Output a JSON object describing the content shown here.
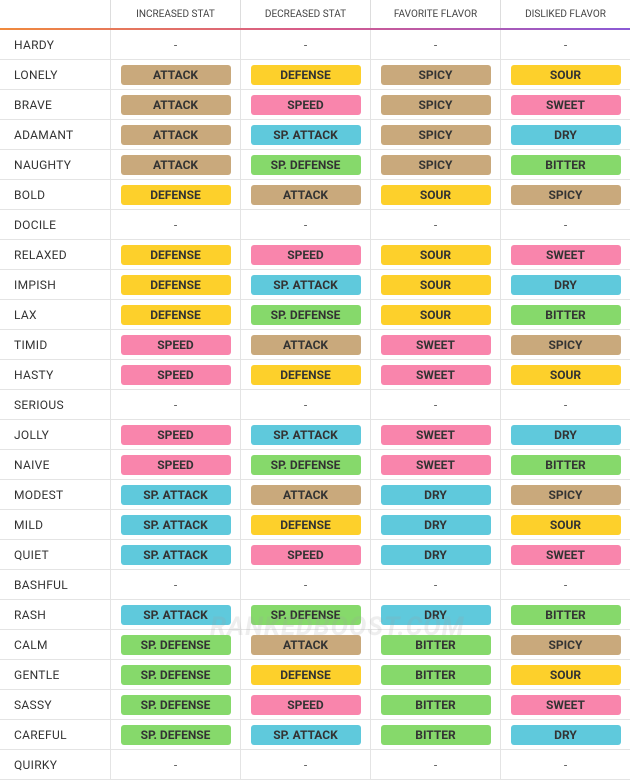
{
  "table": {
    "headers": [
      "INCREASED STAT",
      "DECREASED STAT",
      "FAVORITE FLAVOR",
      "DISLIKED FLAVOR"
    ],
    "rows": [
      {
        "name": "HARDY",
        "cells": [
          {
            "text": "-"
          },
          {
            "text": "-"
          },
          {
            "text": "-"
          },
          {
            "text": "-"
          }
        ]
      },
      {
        "name": "LONELY",
        "cells": [
          {
            "text": "ATTACK",
            "color": "#c9a97c"
          },
          {
            "text": "DEFENSE",
            "color": "#fdd02b"
          },
          {
            "text": "SPICY",
            "color": "#c9a97c"
          },
          {
            "text": "SOUR",
            "color": "#fdd02b"
          }
        ]
      },
      {
        "name": "BRAVE",
        "cells": [
          {
            "text": "ATTACK",
            "color": "#c9a97c"
          },
          {
            "text": "SPEED",
            "color": "#f985ac"
          },
          {
            "text": "SPICY",
            "color": "#c9a97c"
          },
          {
            "text": "SWEET",
            "color": "#f985ac"
          }
        ]
      },
      {
        "name": "ADAMANT",
        "cells": [
          {
            "text": "ATTACK",
            "color": "#c9a97c"
          },
          {
            "text": "SP. ATTACK",
            "color": "#5fc9dc"
          },
          {
            "text": "SPICY",
            "color": "#c9a97c"
          },
          {
            "text": "DRY",
            "color": "#5fc9dc"
          }
        ]
      },
      {
        "name": "NAUGHTY",
        "cells": [
          {
            "text": "ATTACK",
            "color": "#c9a97c"
          },
          {
            "text": "SP. DEFENSE",
            "color": "#86d96b"
          },
          {
            "text": "SPICY",
            "color": "#c9a97c"
          },
          {
            "text": "BITTER",
            "color": "#86d96b"
          }
        ]
      },
      {
        "name": "BOLD",
        "cells": [
          {
            "text": "DEFENSE",
            "color": "#fdd02b"
          },
          {
            "text": "ATTACK",
            "color": "#c9a97c"
          },
          {
            "text": "SOUR",
            "color": "#fdd02b"
          },
          {
            "text": "SPICY",
            "color": "#c9a97c"
          }
        ]
      },
      {
        "name": "DOCILE",
        "cells": [
          {
            "text": "-"
          },
          {
            "text": "-"
          },
          {
            "text": "-"
          },
          {
            "text": "-"
          }
        ]
      },
      {
        "name": "RELAXED",
        "cells": [
          {
            "text": "DEFENSE",
            "color": "#fdd02b"
          },
          {
            "text": "SPEED",
            "color": "#f985ac"
          },
          {
            "text": "SOUR",
            "color": "#fdd02b"
          },
          {
            "text": "SWEET",
            "color": "#f985ac"
          }
        ]
      },
      {
        "name": "IMPISH",
        "cells": [
          {
            "text": "DEFENSE",
            "color": "#fdd02b"
          },
          {
            "text": "SP. ATTACK",
            "color": "#5fc9dc"
          },
          {
            "text": "SOUR",
            "color": "#fdd02b"
          },
          {
            "text": "DRY",
            "color": "#5fc9dc"
          }
        ]
      },
      {
        "name": "LAX",
        "cells": [
          {
            "text": "DEFENSE",
            "color": "#fdd02b"
          },
          {
            "text": "SP. DEFENSE",
            "color": "#86d96b"
          },
          {
            "text": "SOUR",
            "color": "#fdd02b"
          },
          {
            "text": "BITTER",
            "color": "#86d96b"
          }
        ]
      },
      {
        "name": "TIMID",
        "cells": [
          {
            "text": "SPEED",
            "color": "#f985ac"
          },
          {
            "text": "ATTACK",
            "color": "#c9a97c"
          },
          {
            "text": "SWEET",
            "color": "#f985ac"
          },
          {
            "text": "SPICY",
            "color": "#c9a97c"
          }
        ]
      },
      {
        "name": "HASTY",
        "cells": [
          {
            "text": "SPEED",
            "color": "#f985ac"
          },
          {
            "text": "DEFENSE",
            "color": "#fdd02b"
          },
          {
            "text": "SWEET",
            "color": "#f985ac"
          },
          {
            "text": "SOUR",
            "color": "#fdd02b"
          }
        ]
      },
      {
        "name": "SERIOUS",
        "cells": [
          {
            "text": "-"
          },
          {
            "text": "-"
          },
          {
            "text": "-"
          },
          {
            "text": "-"
          }
        ]
      },
      {
        "name": "JOLLY",
        "cells": [
          {
            "text": "SPEED",
            "color": "#f985ac"
          },
          {
            "text": "SP. ATTACK",
            "color": "#5fc9dc"
          },
          {
            "text": "SWEET",
            "color": "#f985ac"
          },
          {
            "text": "DRY",
            "color": "#5fc9dc"
          }
        ]
      },
      {
        "name": "NAIVE",
        "cells": [
          {
            "text": "SPEED",
            "color": "#f985ac"
          },
          {
            "text": "SP. DEFENSE",
            "color": "#86d96b"
          },
          {
            "text": "SWEET",
            "color": "#f985ac"
          },
          {
            "text": "BITTER",
            "color": "#86d96b"
          }
        ]
      },
      {
        "name": "MODEST",
        "cells": [
          {
            "text": "SP. ATTACK",
            "color": "#5fc9dc"
          },
          {
            "text": "ATTACK",
            "color": "#c9a97c"
          },
          {
            "text": "DRY",
            "color": "#5fc9dc"
          },
          {
            "text": "SPICY",
            "color": "#c9a97c"
          }
        ]
      },
      {
        "name": "MILD",
        "cells": [
          {
            "text": "SP. ATTACK",
            "color": "#5fc9dc"
          },
          {
            "text": "DEFENSE",
            "color": "#fdd02b"
          },
          {
            "text": "DRY",
            "color": "#5fc9dc"
          },
          {
            "text": "SOUR",
            "color": "#fdd02b"
          }
        ]
      },
      {
        "name": "QUIET",
        "cells": [
          {
            "text": "SP. ATTACK",
            "color": "#5fc9dc"
          },
          {
            "text": "SPEED",
            "color": "#f985ac"
          },
          {
            "text": "DRY",
            "color": "#5fc9dc"
          },
          {
            "text": "SWEET",
            "color": "#f985ac"
          }
        ]
      },
      {
        "name": "BASHFUL",
        "cells": [
          {
            "text": "-"
          },
          {
            "text": "-"
          },
          {
            "text": "-"
          },
          {
            "text": "-"
          }
        ]
      },
      {
        "name": "RASH",
        "cells": [
          {
            "text": "SP. ATTACK",
            "color": "#5fc9dc"
          },
          {
            "text": "SP. DEFENSE",
            "color": "#86d96b"
          },
          {
            "text": "DRY",
            "color": "#5fc9dc"
          },
          {
            "text": "BITTER",
            "color": "#86d96b"
          }
        ]
      },
      {
        "name": "CALM",
        "cells": [
          {
            "text": "SP. DEFENSE",
            "color": "#86d96b"
          },
          {
            "text": "ATTACK",
            "color": "#c9a97c"
          },
          {
            "text": "BITTER",
            "color": "#86d96b"
          },
          {
            "text": "SPICY",
            "color": "#c9a97c"
          }
        ]
      },
      {
        "name": "GENTLE",
        "cells": [
          {
            "text": "SP. DEFENSE",
            "color": "#86d96b"
          },
          {
            "text": "DEFENSE",
            "color": "#fdd02b"
          },
          {
            "text": "BITTER",
            "color": "#86d96b"
          },
          {
            "text": "SOUR",
            "color": "#fdd02b"
          }
        ]
      },
      {
        "name": "SASSY",
        "cells": [
          {
            "text": "SP. DEFENSE",
            "color": "#86d96b"
          },
          {
            "text": "SPEED",
            "color": "#f985ac"
          },
          {
            "text": "BITTER",
            "color": "#86d96b"
          },
          {
            "text": "SWEET",
            "color": "#f985ac"
          }
        ]
      },
      {
        "name": "CAREFUL",
        "cells": [
          {
            "text": "SP. DEFENSE",
            "color": "#86d96b"
          },
          {
            "text": "SP. ATTACK",
            "color": "#5fc9dc"
          },
          {
            "text": "BITTER",
            "color": "#86d96b"
          },
          {
            "text": "DRY",
            "color": "#5fc9dc"
          }
        ]
      },
      {
        "name": "QUIRKY",
        "cells": [
          {
            "text": "-"
          },
          {
            "text": "-"
          },
          {
            "text": "-"
          },
          {
            "text": "-"
          }
        ]
      }
    ]
  },
  "watermark": "RANKEDBOOST.COM"
}
